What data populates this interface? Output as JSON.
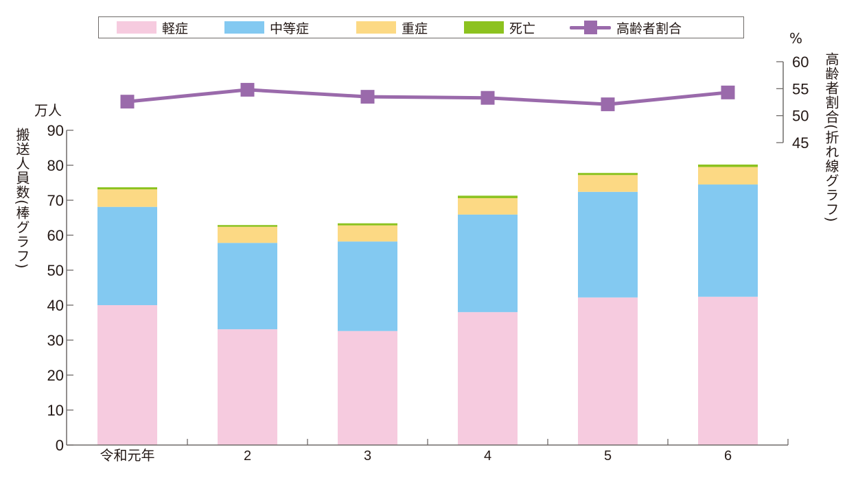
{
  "chart_data": {
    "type": "bar",
    "subtype": "stacked-bar-with-line",
    "categories": [
      "令和元年",
      "2",
      "3",
      "4",
      "5",
      "6"
    ],
    "series": [
      {
        "name": "軽症",
        "type": "bar",
        "axis": "left",
        "color": "#f6cbdf",
        "values": [
          40.0,
          33.1,
          32.6,
          38.0,
          42.2,
          42.4
        ]
      },
      {
        "name": "中等症",
        "type": "bar",
        "axis": "left",
        "color": "#83c9f1",
        "values": [
          28.1,
          24.7,
          25.6,
          27.9,
          30.2,
          32.1
        ]
      },
      {
        "name": "重症",
        "type": "bar",
        "axis": "left",
        "color": "#fcd984",
        "values": [
          5.0,
          4.6,
          4.6,
          4.7,
          4.8,
          5.0
        ]
      },
      {
        "name": "死亡",
        "type": "bar",
        "axis": "left",
        "color": "#8cc21f",
        "values": [
          0.6,
          0.5,
          0.6,
          0.7,
          0.6,
          0.7
        ]
      },
      {
        "name": "高齢者割合",
        "type": "line",
        "axis": "right",
        "color": "#9a6aab",
        "marker": "square",
        "values": [
          52.6,
          54.8,
          53.5,
          53.3,
          52.1,
          54.3
        ]
      }
    ],
    "totals": [
      73.7,
      62.9,
      63.3,
      71.3,
      77.8,
      80.2
    ],
    "title": "",
    "xlabel": "",
    "ylabel": "搬送人員数(棒グラフ)",
    "ylabel_unit": "万人",
    "ylim": [
      0,
      90
    ],
    "yticks": [
      0,
      10,
      20,
      30,
      40,
      50,
      60,
      70,
      80,
      90
    ],
    "y2label": "高齢者割合(折れ線グラフ)",
    "y2label_unit": "%",
    "y2lim": [
      45,
      60
    ],
    "y2ticks": [
      45,
      50,
      55,
      60
    ],
    "grid": false,
    "legend_position": "top"
  },
  "legend": {
    "items": [
      {
        "label": "軽症",
        "kind": "swatch",
        "color": "#f6cbdf"
      },
      {
        "label": "中等症",
        "kind": "swatch",
        "color": "#83c9f1"
      },
      {
        "label": "重症",
        "kind": "swatch",
        "color": "#fcd984"
      },
      {
        "label": "死亡",
        "kind": "swatch",
        "color": "#8cc21f"
      },
      {
        "label": "高齢者割合",
        "kind": "line-marker",
        "color": "#9a6aab"
      }
    ]
  },
  "axes": {
    "left_title": "搬送人員数(棒グラフ)",
    "left_unit": "万人",
    "right_title": "高齢者割合(折れ線グラフ)",
    "right_unit": "%"
  }
}
